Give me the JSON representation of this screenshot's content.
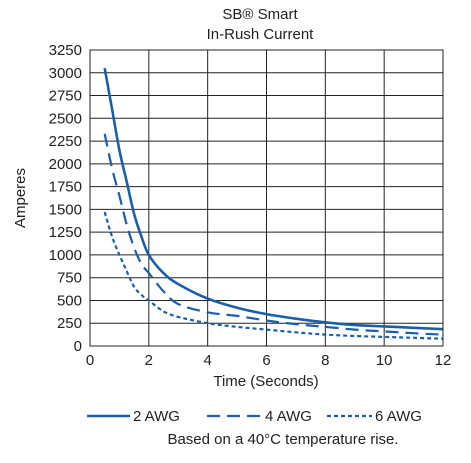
{
  "chart_data": {
    "type": "line",
    "title_line1": "SB® Smart",
    "title_line2": "In-Rush Current",
    "xlabel": "Time (Seconds)",
    "ylabel": "Amperes",
    "xlim": [
      0,
      12
    ],
    "ylim": [
      0,
      3250
    ],
    "x_ticks": [
      "0",
      "2",
      "4",
      "6",
      "8",
      "10",
      "12"
    ],
    "y_ticks": [
      "0",
      "250",
      "500",
      "750",
      "1000",
      "1250",
      "1500",
      "1750",
      "2000",
      "2250",
      "2500",
      "2750",
      "3000",
      "3250"
    ],
    "grid": true,
    "legend_position": "bottom",
    "note": "Based on a 40°C temperature rise.",
    "line_color": "#1b5fa8",
    "series": [
      {
        "name": "2 AWG",
        "style": "solid",
        "x": [
          0.5,
          0.75,
          1.0,
          1.25,
          1.5,
          1.75,
          2.0,
          2.5,
          3.0,
          4.0,
          5.0,
          6.0,
          7.0,
          8.0,
          9.0,
          10.0,
          11.0,
          12.0
        ],
        "y": [
          3050,
          2600,
          2150,
          1800,
          1450,
          1200,
          1000,
          800,
          680,
          520,
          420,
          350,
          300,
          260,
          230,
          215,
          200,
          185
        ]
      },
      {
        "name": "4 AWG",
        "style": "dash",
        "x": [
          0.5,
          0.75,
          1.0,
          1.25,
          1.5,
          1.75,
          2.0,
          2.5,
          3.0,
          4.0,
          5.0,
          6.0,
          7.0,
          8.0,
          9.0,
          10.0,
          11.0,
          12.0
        ],
        "y": [
          2330,
          1950,
          1650,
          1330,
          1080,
          900,
          800,
          600,
          460,
          370,
          330,
          280,
          240,
          210,
          180,
          160,
          140,
          125
        ]
      },
      {
        "name": "6 AWG",
        "style": "dot",
        "x": [
          0.5,
          0.75,
          1.0,
          1.25,
          1.5,
          1.75,
          2.0,
          2.5,
          3.0,
          4.0,
          5.0,
          6.0,
          7.0,
          8.0,
          9.0,
          10.0,
          11.0,
          12.0
        ],
        "y": [
          1470,
          1200,
          1000,
          820,
          650,
          560,
          500,
          380,
          320,
          250,
          210,
          180,
          150,
          125,
          110,
          100,
          90,
          80
        ]
      }
    ]
  }
}
